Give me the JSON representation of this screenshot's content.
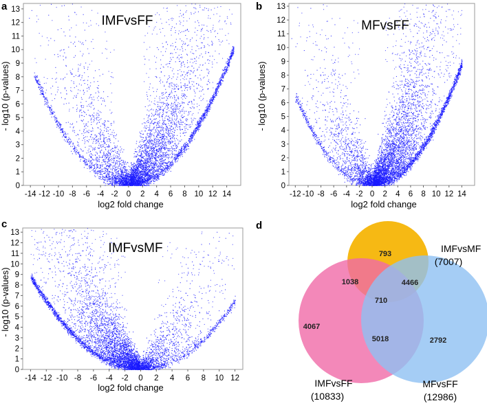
{
  "chart_data": [
    {
      "type": "scatter",
      "panel": "a",
      "title": "IMFvsFF",
      "xlabel": "log2 fold change",
      "ylabel": "- log10 (p-values)",
      "xlim": [
        -15,
        16
      ],
      "ylim": [
        0,
        13.4
      ],
      "xticks": [
        -14,
        -12,
        -10,
        -8,
        -6,
        -4,
        -2,
        0,
        2,
        4,
        6,
        8,
        10,
        12,
        14
      ],
      "yticks": [
        0,
        1,
        2,
        3,
        4,
        5,
        6,
        7,
        8,
        9,
        10,
        11,
        12,
        13
      ],
      "point_color": "#1a1aff",
      "shape": "volcano",
      "left_arm_reach": 13.5,
      "right_arm_reach": 15,
      "left_density": 0.42,
      "right_density": 1.0
    },
    {
      "type": "scatter",
      "panel": "b",
      "title": "MFvsFF",
      "xlabel": "log2 fold change",
      "ylabel": "- log10 (p-values)",
      "xlim": [
        -13,
        16
      ],
      "ylim": [
        0,
        13.2
      ],
      "xticks": [
        -12,
        -10,
        -8,
        -6,
        -4,
        -2,
        0,
        2,
        4,
        6,
        8,
        10,
        12,
        14
      ],
      "yticks": [
        0,
        1,
        2,
        3,
        4,
        5,
        6,
        7,
        8,
        9,
        10,
        11,
        12,
        13
      ],
      "point_color": "#1a1aff",
      "shape": "volcano",
      "left_arm_reach": 12,
      "right_arm_reach": 14,
      "left_density": 0.35,
      "right_density": 1.15
    },
    {
      "type": "scatter",
      "panel": "c",
      "title": "IMFvsMF",
      "xlabel": "log2 fold change",
      "ylabel": "- log10 (p-values)",
      "xlim": [
        -15,
        13
      ],
      "ylim": [
        0,
        13.4
      ],
      "xticks": [
        -14,
        -12,
        -10,
        -8,
        -6,
        -4,
        -2,
        0,
        2,
        4,
        6,
        8,
        10,
        12
      ],
      "yticks": [
        0,
        1,
        2,
        3,
        4,
        5,
        6,
        7,
        8,
        9,
        10,
        11,
        12,
        13
      ],
      "point_color": "#1a1aff",
      "shape": "volcano",
      "left_arm_reach": 14,
      "right_arm_reach": 12,
      "left_density": 1.05,
      "right_density": 0.32
    },
    {
      "type": "venn",
      "panel": "d",
      "sets": [
        {
          "name": "IMFvsMF",
          "total": "(7007)",
          "color": "#f5b300"
        },
        {
          "name": "IMFvsFF",
          "total": "(10833)",
          "color": "#f06aa8"
        },
        {
          "name": "MFvsFF",
          "total": "(12986)",
          "color": "#8ec1f2"
        }
      ],
      "regions": {
        "imfmf_only": "793",
        "imfff_only": "4067",
        "mfff_only": "2792",
        "imfmf_imfff": "1038",
        "imfmf_mfff": "4466",
        "imfff_mfff": "5018",
        "all_three": "710"
      }
    }
  ]
}
